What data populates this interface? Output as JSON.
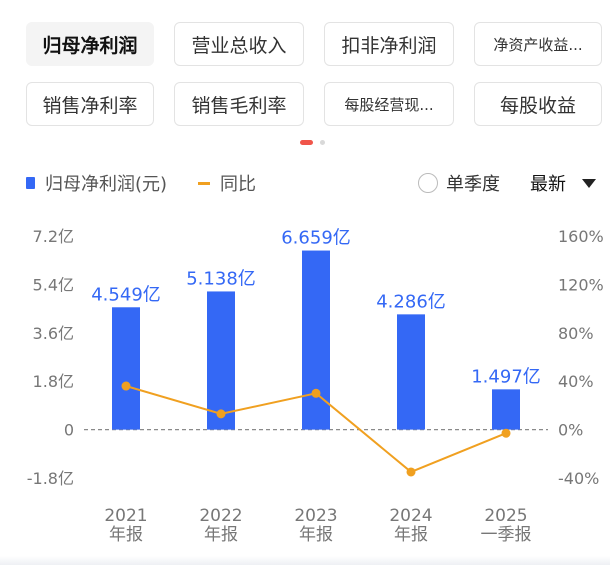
{
  "tabs": [
    {
      "label": "归母净利润",
      "active": true
    },
    {
      "label": "营业总收入",
      "active": false
    },
    {
      "label": "扣非净利润",
      "active": false
    },
    {
      "label": "净资产收益...",
      "active": false
    },
    {
      "label": "销售净利率",
      "active": false
    },
    {
      "label": "销售毛利率",
      "active": false
    },
    {
      "label": "每股经营现...",
      "active": false
    },
    {
      "label": "每股收益",
      "active": false
    }
  ],
  "pager": {
    "pages": 2,
    "current": 1,
    "active_color": "#f0554a",
    "inactive_color": "#d9d9d9"
  },
  "legend": {
    "bar_label": "归母净利润(元)",
    "line_label": "同比"
  },
  "controls": {
    "quarter_label": "单季度",
    "quarter_checked": false,
    "sort_label": "最新"
  },
  "colors": {
    "bar": "#3468f5",
    "line": "#f0a020",
    "bar_label": "#3468f5",
    "axis_text": "#777777"
  },
  "chart_data": {
    "type": "bar",
    "categories": [
      {
        "year": "2021",
        "period": "年报"
      },
      {
        "year": "2022",
        "period": "年报"
      },
      {
        "year": "2023",
        "period": "年报"
      },
      {
        "year": "2024",
        "period": "年报"
      },
      {
        "year": "2025",
        "period": "一季报"
      }
    ],
    "series": [
      {
        "name": "归母净利润(元)",
        "type": "bar",
        "axis": "left",
        "values": [
          4.549,
          5.138,
          6.659,
          4.286,
          1.497
        ],
        "labels": [
          "4.549亿",
          "5.138亿",
          "6.659亿",
          "4.286亿",
          "1.497亿"
        ]
      },
      {
        "name": "同比",
        "type": "line",
        "axis": "right",
        "values": [
          36,
          13,
          30,
          -35,
          -3
        ]
      }
    ],
    "left_axis": {
      "min": -1.8,
      "max": 7.2,
      "ticks": [
        7.2,
        5.4,
        3.6,
        1.8,
        0,
        -1.8
      ],
      "tick_labels": [
        "7.2亿",
        "5.4亿",
        "3.6亿",
        "1.8亿",
        "0",
        "-1.8亿"
      ]
    },
    "right_axis": {
      "min": -40,
      "max": 160,
      "ticks": [
        160,
        120,
        80,
        40,
        0,
        -40
      ],
      "tick_labels": [
        "160%",
        "120%",
        "80%",
        "40%",
        "0%",
        "-40%"
      ]
    },
    "zero_line": "dashed"
  }
}
